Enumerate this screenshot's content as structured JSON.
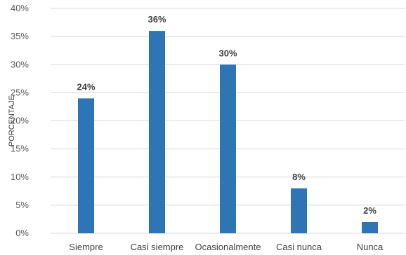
{
  "chart_data": {
    "type": "bar",
    "title": "",
    "xlabel": "",
    "ylabel": "PORCENTAJE",
    "categories": [
      "Siempre",
      "Casi siempre",
      "Ocasionalmente",
      "Casi nunca",
      "Nunca"
    ],
    "values": [
      24,
      36,
      30,
      8,
      2
    ],
    "data_labels": [
      "24%",
      "36%",
      "30%",
      "8%",
      "2%"
    ],
    "ylim": [
      0,
      40
    ],
    "y_ticks": [
      0,
      5,
      10,
      15,
      20,
      25,
      30,
      35,
      40
    ],
    "y_tick_labels": [
      "0%",
      "5%",
      "10%",
      "15%",
      "20%",
      "25%",
      "30%",
      "35%",
      "40%"
    ],
    "grid": true,
    "bar_color": "#2e75b6",
    "gridline_color": "#d9d9d9"
  }
}
